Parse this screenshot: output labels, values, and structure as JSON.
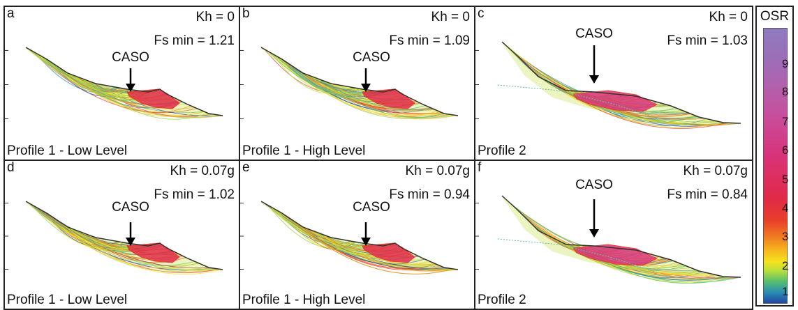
{
  "panels": [
    {
      "letter": "a",
      "kh": "Kh = 0",
      "fs": "Fs min = 1.21",
      "profile": "Profile 1 - Low Level",
      "caso": "CASO",
      "shape": 1
    },
    {
      "letter": "b",
      "kh": "Kh = 0",
      "fs": "Fs min = 1.09",
      "profile": "Profile 1 - High Level",
      "caso": "CASO",
      "shape": 1
    },
    {
      "letter": "c",
      "kh": "Kh = 0",
      "fs": "Fs min = 1.03",
      "profile": "Profile 2",
      "caso": "CASO",
      "shape": 2
    },
    {
      "letter": "d",
      "kh": "Kh = 0.07g",
      "fs": "Fs min = 1.02",
      "profile": "Profile 1 - Low Level",
      "caso": "CASO",
      "shape": 1
    },
    {
      "letter": "e",
      "kh": "Kh = 0.07g",
      "fs": "Fs min = 0.94",
      "profile": "Profile 1 - High Level",
      "caso": "CASO",
      "shape": 1
    },
    {
      "letter": "f",
      "kh": "Kh = 0.07g",
      "fs": "Fs min = 0.84",
      "profile": "Profile 2",
      "caso": "CASO",
      "shape": 2
    }
  ],
  "legend": {
    "title": "OSR",
    "ticks": [
      "9",
      "8",
      "7",
      "6",
      "5",
      "4",
      "3",
      "2",
      "1"
    ]
  },
  "colors": {
    "osr_low": "#1f47a6",
    "osr_mid": "#f3e31e",
    "osr_high": "#d8337a",
    "osr_top": "#8f7bbf"
  }
}
